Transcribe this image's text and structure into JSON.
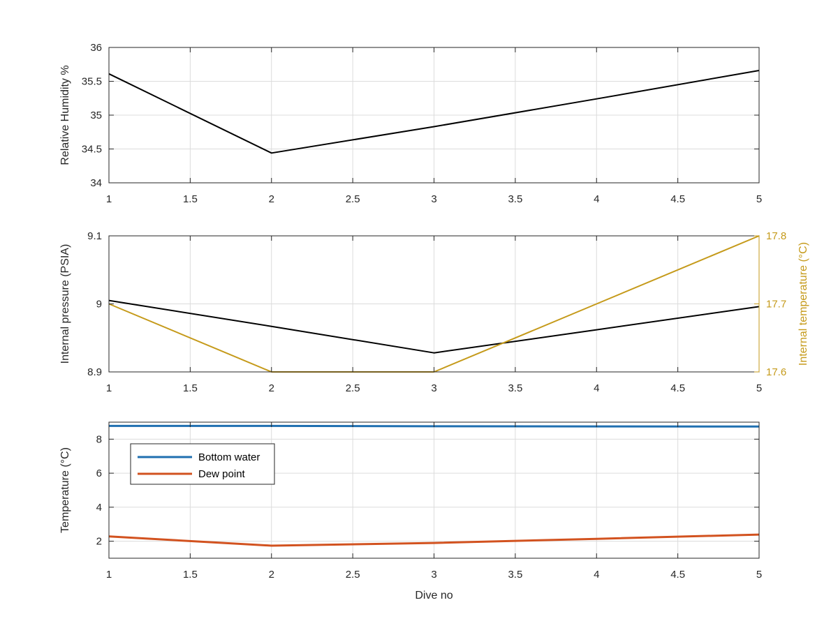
{
  "chart_data": [
    {
      "type": "line",
      "xlabel": "",
      "ylabel": "Relative Humidity %",
      "xlim": [
        1,
        5
      ],
      "ylim": [
        34,
        36
      ],
      "xticks": [
        1,
        1.5,
        2,
        2.5,
        3,
        3.5,
        4,
        4.5,
        5
      ],
      "yticks": [
        34,
        34.5,
        35,
        35.5,
        36
      ],
      "grid": true,
      "series": [
        {
          "name": "",
          "axis": "left",
          "color": "#000000",
          "x": [
            1,
            2,
            3,
            4,
            5
          ],
          "y": [
            35.61,
            34.44,
            34.83,
            35.24,
            35.66
          ]
        }
      ]
    },
    {
      "type": "line",
      "xlabel": "",
      "ylabel": "Internal pressure (PSIA)",
      "ylabel_right": "Internal temperature (°C)",
      "xlim": [
        1,
        5
      ],
      "ylim": [
        8.9,
        9.1
      ],
      "ylim_right": [
        17.6,
        17.8
      ],
      "xticks": [
        1,
        1.5,
        2,
        2.5,
        3,
        3.5,
        4,
        4.5,
        5
      ],
      "yticks": [
        8.9,
        9,
        9.1
      ],
      "yticks_right": [
        17.6,
        17.7,
        17.8
      ],
      "right_axis_color": "#c59a1a",
      "grid": true,
      "series": [
        {
          "name": "",
          "axis": "left",
          "color": "#000000",
          "x": [
            1,
            2,
            3,
            4,
            5
          ],
          "y": [
            9.005,
            8.967,
            8.928,
            8.962,
            8.996
          ]
        },
        {
          "name": "",
          "axis": "right",
          "color": "#c59a1a",
          "x": [
            1,
            2,
            3,
            4,
            5
          ],
          "y": [
            17.7,
            17.6,
            17.6,
            17.7,
            17.8
          ]
        }
      ]
    },
    {
      "type": "line",
      "xlabel": "Dive no",
      "ylabel": "Temperature (°C)",
      "xlim": [
        1,
        5
      ],
      "ylim": [
        1,
        9
      ],
      "xticks": [
        1,
        1.5,
        2,
        2.5,
        3,
        3.5,
        4,
        4.5,
        5
      ],
      "yticks": [
        2,
        4,
        6,
        8
      ],
      "grid": true,
      "legend_position": "upper-left",
      "series": [
        {
          "name": "Bottom water",
          "axis": "left",
          "color": "#1f6fb0",
          "x": [
            1,
            2,
            3,
            4,
            5
          ],
          "y": [
            8.78,
            8.78,
            8.76,
            8.75,
            8.74
          ]
        },
        {
          "name": "Dew point",
          "axis": "left",
          "color": "#d2521f",
          "x": [
            1,
            2,
            3,
            4,
            5
          ],
          "y": [
            2.28,
            1.74,
            1.9,
            2.14,
            2.39
          ]
        }
      ]
    }
  ]
}
